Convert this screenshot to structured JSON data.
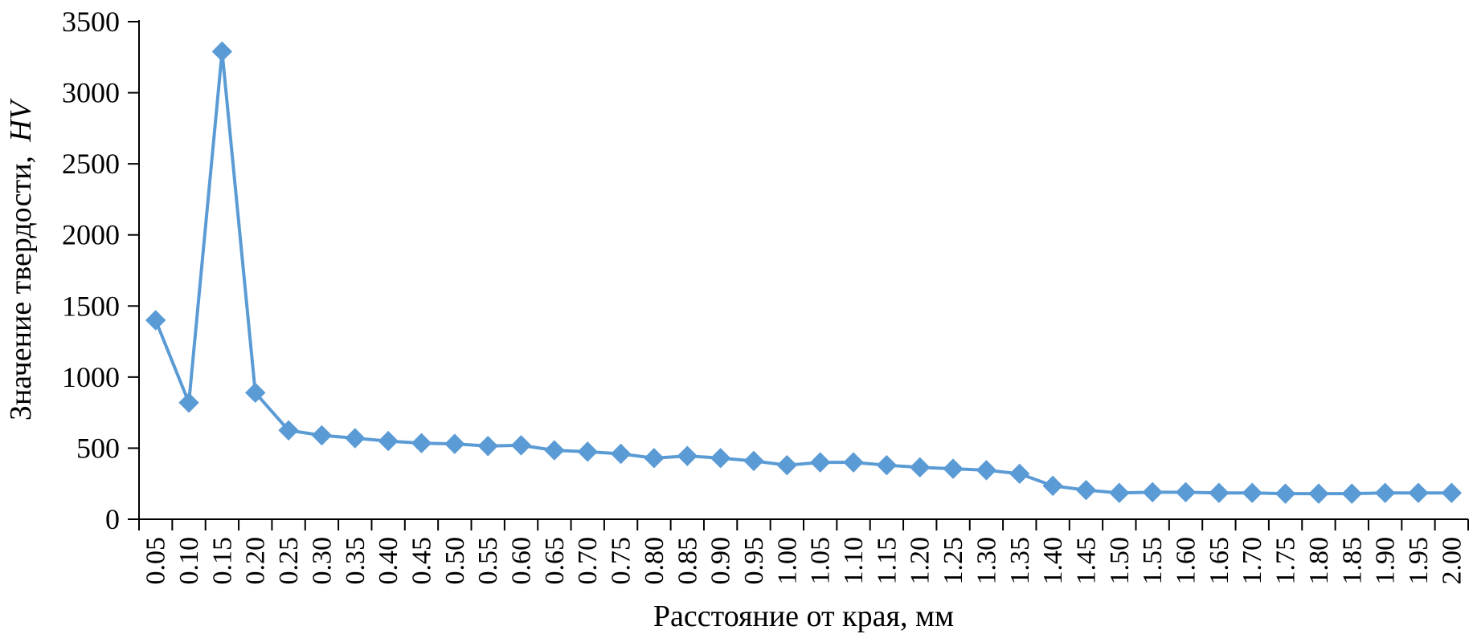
{
  "chart_data": {
    "type": "line",
    "title": "",
    "xlabel": "Расстояние от края, мм",
    "ylabel": "Значение твердости,",
    "ylabel_italic": "HV",
    "ylim": [
      0,
      3500
    ],
    "y_ticks": [
      "0",
      "500",
      "1000",
      "1500",
      "2000",
      "2500",
      "3000",
      "3500"
    ],
    "categories": [
      "0.05",
      "0.10",
      "0.15",
      "0.20",
      "0.25",
      "0.30",
      "0.35",
      "0.40",
      "0.45",
      "0.50",
      "0.55",
      "0.60",
      "0.65",
      "0.70",
      "0.75",
      "0.80",
      "0.85",
      "0.90",
      "0.95",
      "1.00",
      "1.05",
      "1.10",
      "1.15",
      "1.20",
      "1.25",
      "1.30",
      "1.35",
      "1.40",
      "1.45",
      "1.50",
      "1.55",
      "1.60",
      "1.65",
      "1.70",
      "1.75",
      "1.80",
      "1.85",
      "1.90",
      "1.95",
      "2.00"
    ],
    "series": [
      {
        "color": "#5b9bd5",
        "marker": "diamond",
        "values": [
          1400,
          820,
          3290,
          890,
          625,
          590,
          570,
          550,
          535,
          530,
          515,
          520,
          485,
          475,
          460,
          430,
          445,
          430,
          410,
          380,
          400,
          400,
          380,
          365,
          355,
          345,
          320,
          235,
          205,
          185,
          190,
          190,
          185,
          185,
          180,
          180,
          180,
          185,
          185,
          185
        ]
      }
    ],
    "grid": false,
    "legend": "none"
  }
}
